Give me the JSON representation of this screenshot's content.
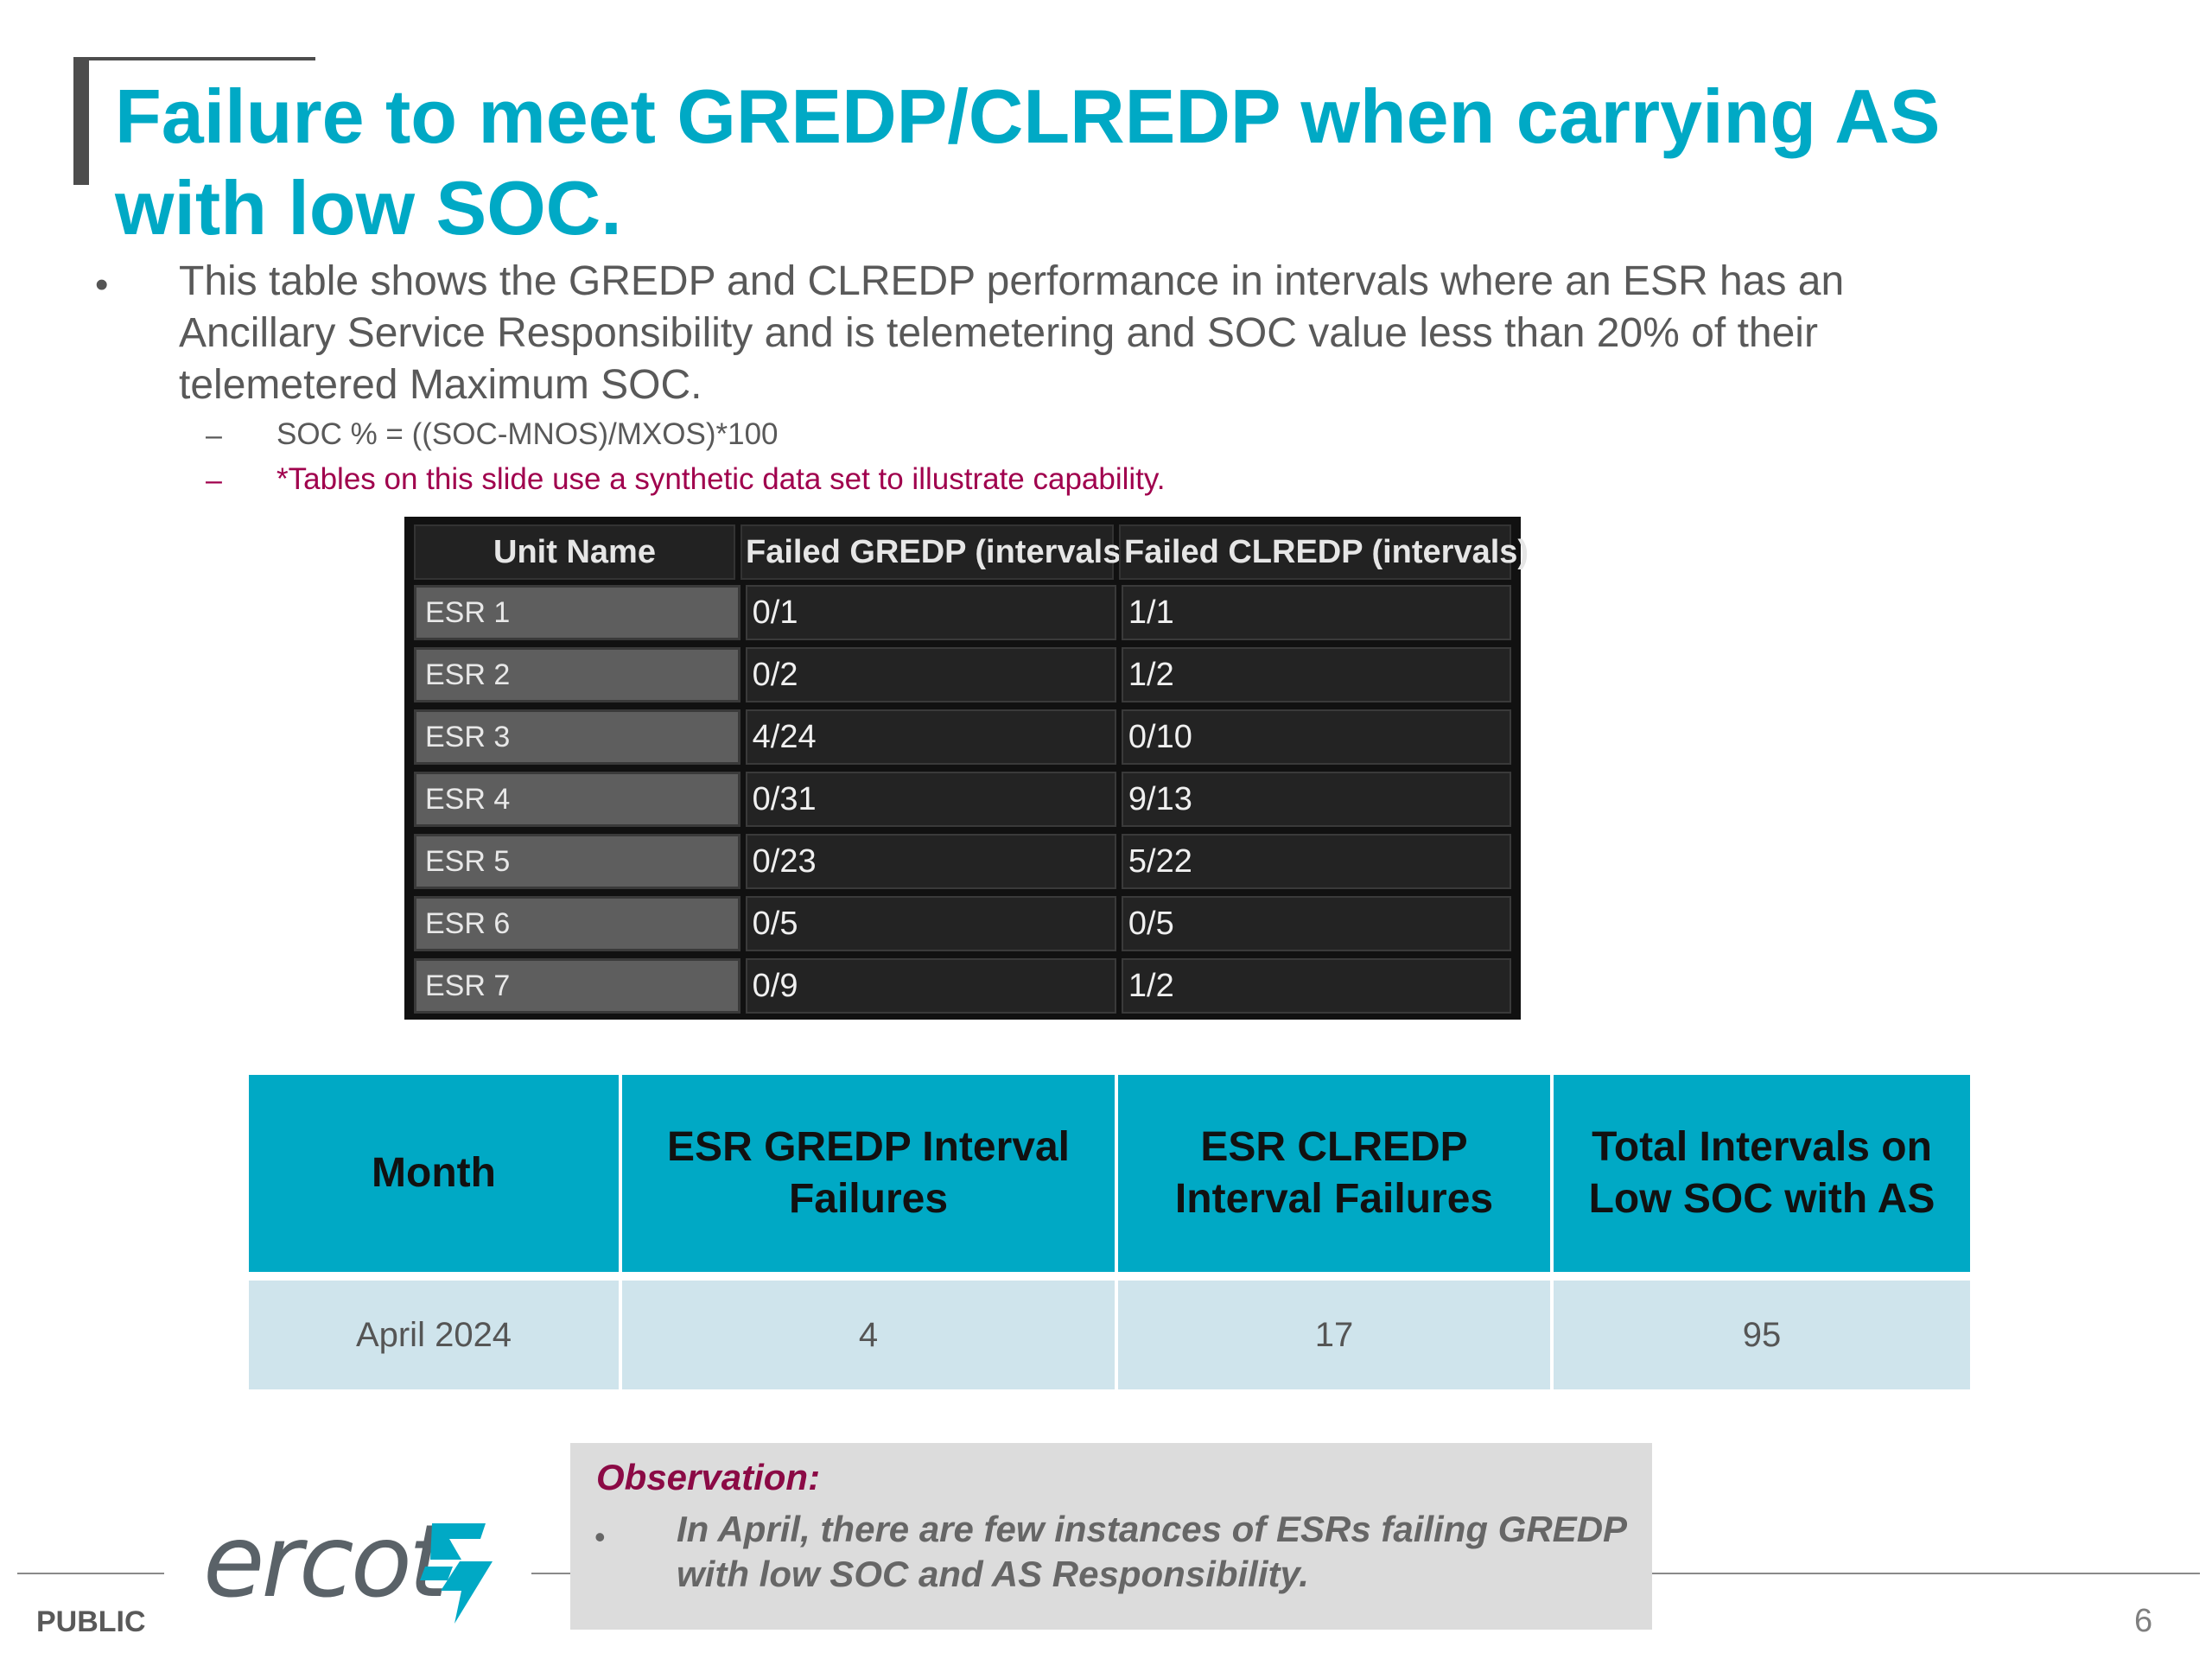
{
  "slide": {
    "title": "Failure to meet GREDP/CLREDP when carrying AS with low SOC.",
    "bullet": "This table shows the GREDP and CLREDP performance in intervals where an ESR has an Ancillary Service Responsibility and is telemetering and SOC value less than 20% of their telemetered Maximum SOC.",
    "sub_bullets": [
      {
        "marker": "–",
        "text": "SOC % = ((SOC-MNOS)/MXOS)*100",
        "color": "#595959"
      },
      {
        "marker": "–",
        "text": "*Tables on this slide use a synthetic data set to illustrate capability.",
        "color": "#a0004d"
      }
    ],
    "bullet_marker": "•"
  },
  "unit_table": {
    "headers": [
      "Unit Name",
      "Failed GREDP (intervals)",
      "Failed CLREDP (intervals)"
    ],
    "rows": [
      [
        "ESR 1",
        "0/1",
        "1/1"
      ],
      [
        "ESR 2",
        "0/2",
        "1/2"
      ],
      [
        "ESR 3",
        "4/24",
        "0/10"
      ],
      [
        "ESR 4",
        "0/31",
        "9/13"
      ],
      [
        "ESR 5",
        "0/23",
        "5/22"
      ],
      [
        "ESR 6",
        "0/5",
        "0/5"
      ],
      [
        "ESR 7",
        "0/9",
        "1/2"
      ]
    ]
  },
  "summary_table": {
    "headers": [
      "Month",
      "ESR GREDP Interval Failures",
      "ESR CLREDP Interval Failures",
      "Total Intervals on Low SOC with AS"
    ],
    "rows": [
      [
        "April 2024",
        "4",
        "17",
        "95"
      ]
    ]
  },
  "observation": {
    "title": "Observation:",
    "marker": "•",
    "text": "In April, there are few instances of ESRs failing GREDP with low SOC and AS Responsibility."
  },
  "footer": {
    "logo_text": "ercot",
    "classification": "PUBLIC",
    "page_number": "6"
  },
  "colors": {
    "accent": "#00a9c5",
    "alert": "#a0004d",
    "row_fill": "#cfe4ec"
  }
}
